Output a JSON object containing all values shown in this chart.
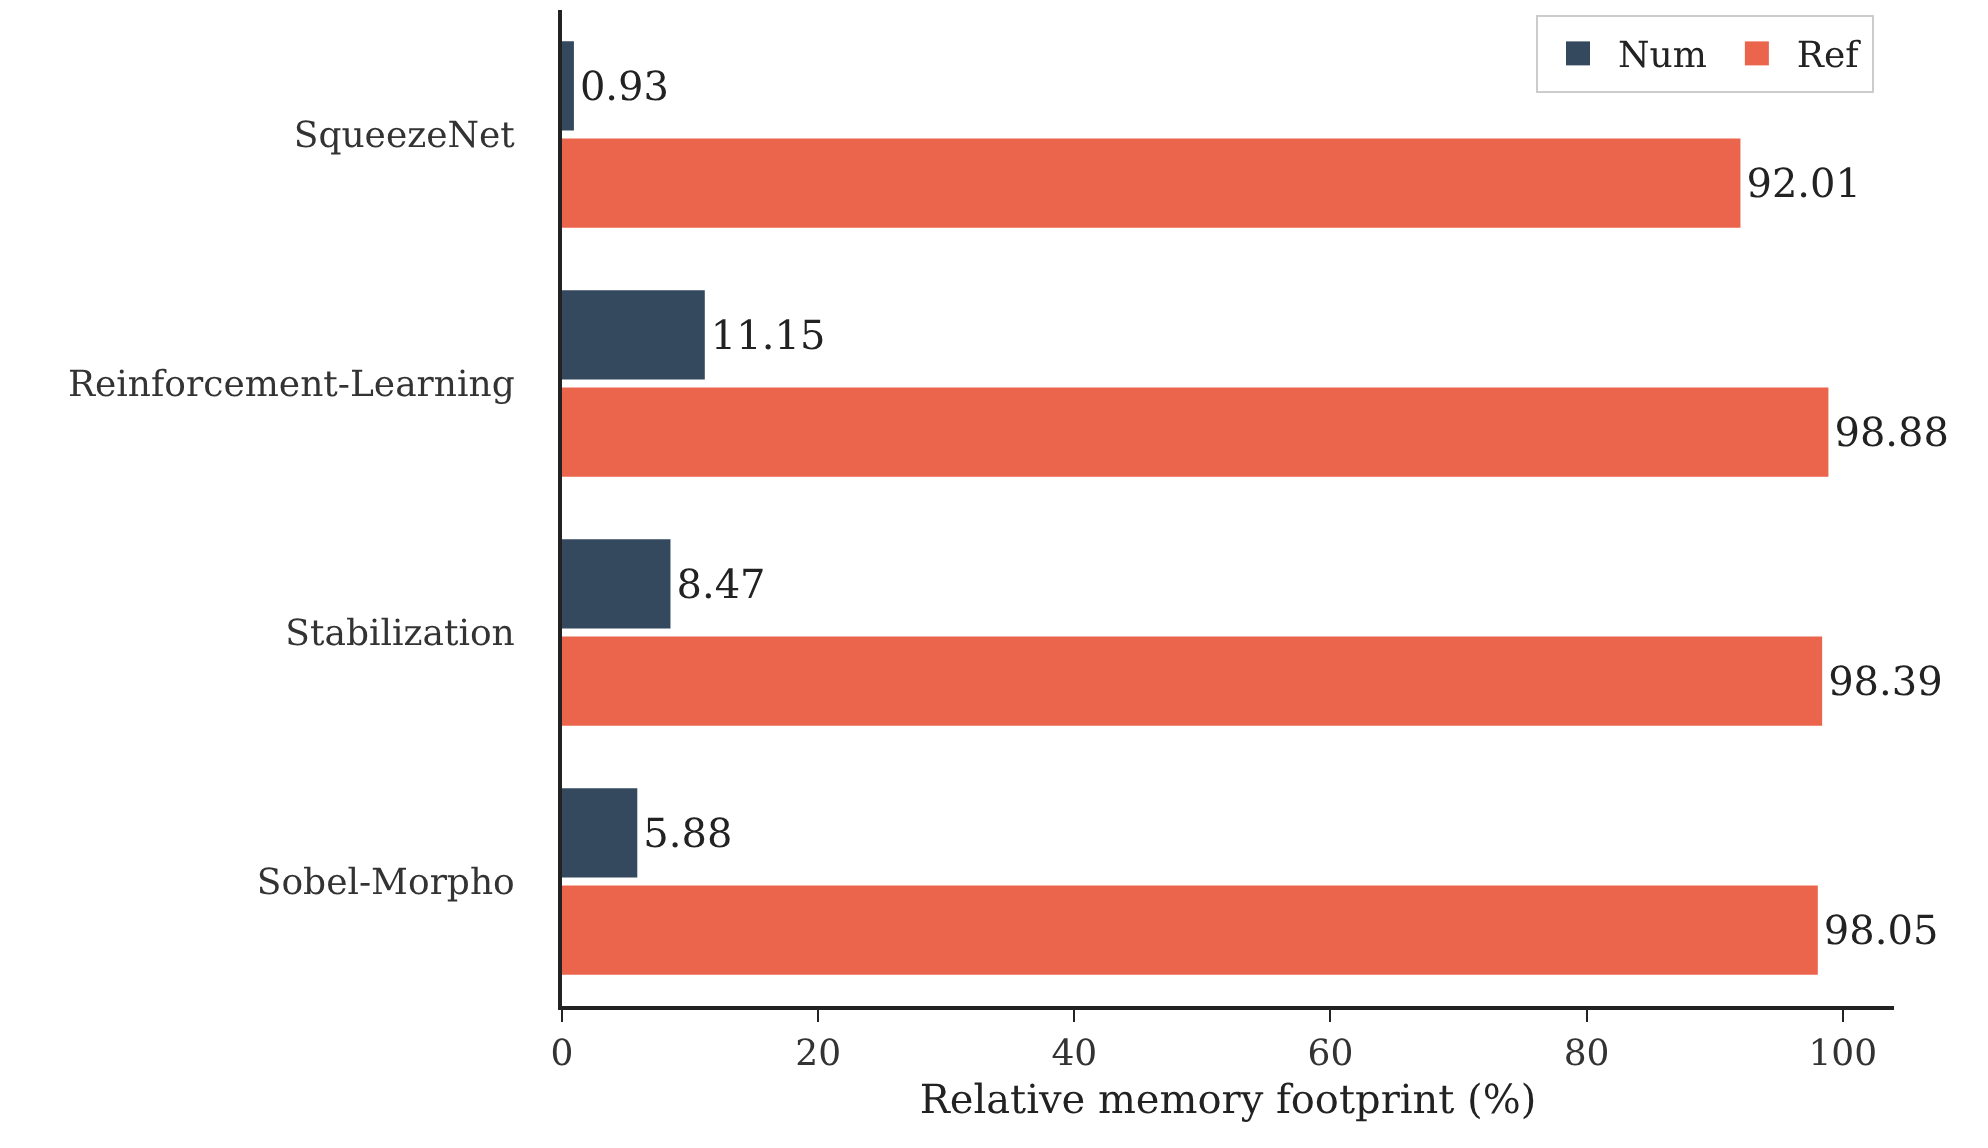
{
  "chart_data": {
    "type": "bar",
    "orientation": "horizontal",
    "xlabel": "Relative memory footprint (%)",
    "categories": [
      "SqueezeNet",
      "Reinforcement-Learning",
      "Stabilization",
      "Sobel-Morpho"
    ],
    "series": [
      {
        "name": "Num",
        "color": "#34495e",
        "values": [
          0.93,
          11.15,
          8.47,
          5.88
        ]
      },
      {
        "name": "Ref",
        "color": "#eb644c",
        "values": [
          92.01,
          98.88,
          98.39,
          98.05
        ]
      }
    ],
    "xlim": [
      0,
      104
    ],
    "xticks": [
      0,
      20,
      40,
      60,
      80,
      100
    ],
    "data_labels": true,
    "legend": "top right"
  }
}
